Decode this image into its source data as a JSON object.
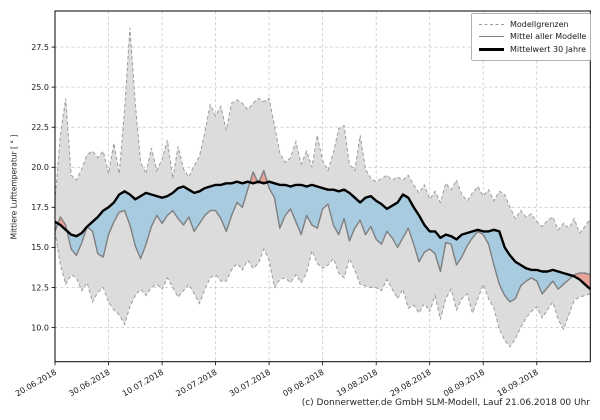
{
  "caption": "(c) Donnerwetter.de GmbH SLM-Modell, Lauf 21.06.2018 00 Uhr",
  "chart_data": {
    "type": "line",
    "title": "",
    "xlabel": "",
    "ylabel": "Mittlere Lufttemperatur [ ° ]",
    "x_unit": "days since 20.06.2018",
    "x_tick_days": [
      0,
      10,
      20,
      30,
      40,
      50,
      60,
      70,
      80,
      90
    ],
    "x_tick_labels": [
      "20.06.2018",
      "30.06.2018",
      "10.07.2018",
      "20.07.2018",
      "30.07.2018",
      "09.08.2018",
      "19.08.2018",
      "29.08.2018",
      "08.09.2018",
      "18.09.2018"
    ],
    "y_ticks": [
      10.0,
      12.5,
      15.0,
      17.5,
      20.0,
      22.5,
      25.0,
      27.5
    ],
    "ylim": [
      7.87,
      29.75
    ],
    "xlim_days": [
      0,
      100
    ],
    "grid": "dashed",
    "legend_position": "upper right",
    "legend": [
      "Modellgrenzen",
      "Mittel aller Modelle",
      "Mittelwert 30 Jahre"
    ],
    "colors": {
      "band_fill": "#dcdcdc",
      "bound_line": "#9c9c9c",
      "model_mean_line": "#7f7f7f",
      "mean30_line": "#000000",
      "warmer_fill": "#e8a49c",
      "cooler_fill": "#a8cbe0",
      "grid": "#c9c9c9"
    },
    "series": [
      {
        "name": "Modellgrenzen (oben)",
        "values": [
          17.9,
          22.0,
          24.3,
          19.5,
          19.2,
          19.9,
          20.8,
          21.0,
          20.6,
          21.0,
          19.6,
          21.5,
          19.6,
          23.6,
          28.7,
          24.0,
          20.3,
          19.6,
          21.2,
          19.8,
          20.5,
          21.7,
          19.3,
          21.3,
          19.9,
          19.4,
          20.1,
          20.7,
          22.2,
          23.9,
          23.2,
          23.8,
          22.3,
          24.0,
          24.2,
          24.0,
          23.6,
          24.0,
          24.3,
          24.1,
          24.3,
          22.6,
          20.9,
          20.3,
          20.6,
          21.6,
          20.2,
          21.0,
          20.0,
          22.0,
          20.4,
          19.8,
          20.9,
          22.4,
          22.6,
          20.2,
          19.8,
          22.0,
          19.9,
          19.3,
          19.1,
          19.3,
          19.5,
          19.2,
          19.4,
          19.2,
          19.5,
          18.9,
          18.4,
          18.9,
          18.0,
          18.5,
          17.8,
          19.0,
          18.6,
          19.2,
          18.3,
          17.9,
          18.4,
          18.8,
          18.2,
          18.6,
          17.9,
          18.5,
          18.3,
          17.5,
          16.8,
          17.3,
          16.9,
          17.1,
          16.6,
          16.3,
          16.7,
          16.9,
          16.1,
          16.5,
          16.2,
          16.8,
          15.9,
          16.3,
          16.8
        ]
      },
      {
        "name": "Modellgrenzen (unten)",
        "values": [
          16.0,
          13.9,
          12.7,
          13.3,
          13.1,
          12.3,
          12.8,
          11.6,
          12.2,
          12.5,
          11.6,
          11.1,
          10.8,
          10.2,
          11.3,
          12.0,
          12.4,
          12.0,
          12.5,
          12.7,
          12.4,
          13.1,
          12.5,
          11.9,
          12.3,
          12.7,
          12.1,
          11.5,
          12.4,
          13.1,
          13.3,
          12.9,
          12.9,
          13.6,
          14.0,
          13.6,
          14.2,
          13.7,
          14.0,
          14.9,
          14.2,
          12.5,
          13.0,
          13.1,
          12.8,
          13.3,
          12.8,
          13.4,
          14.8,
          14.0,
          13.7,
          13.9,
          14.3,
          13.4,
          13.1,
          14.3,
          13.6,
          12.7,
          12.6,
          12.5,
          12.5,
          12.3,
          13.0,
          12.4,
          11.8,
          12.4,
          11.2,
          11.4,
          10.9,
          11.5,
          11.0,
          12.0,
          10.5,
          11.8,
          12.4,
          11.1,
          11.8,
          12.1,
          10.9,
          11.8,
          12.7,
          11.8,
          11.2,
          9.9,
          9.2,
          8.8,
          9.3,
          10.0,
          10.6,
          11.0,
          11.3,
          10.6,
          11.1,
          11.6,
          10.5,
          9.9,
          10.8,
          11.7,
          11.9,
          12.0,
          12.1
        ]
      },
      {
        "name": "Mittel aller Modelle",
        "values": [
          16.0,
          16.9,
          16.4,
          14.9,
          14.5,
          15.3,
          16.3,
          16.0,
          14.6,
          14.4,
          15.8,
          16.6,
          17.2,
          17.3,
          16.4,
          15.1,
          14.3,
          15.2,
          16.3,
          17.0,
          16.5,
          17.0,
          17.3,
          16.8,
          16.4,
          16.9,
          16.0,
          16.5,
          17.0,
          17.3,
          17.3,
          16.8,
          16.0,
          17.0,
          17.8,
          17.5,
          18.6,
          19.7,
          19.0,
          19.8,
          18.7,
          18.1,
          16.2,
          17.0,
          17.4,
          16.6,
          15.8,
          17.0,
          16.4,
          16.2,
          17.4,
          17.7,
          16.4,
          15.8,
          16.8,
          15.4,
          16.2,
          16.7,
          15.8,
          16.3,
          15.5,
          15.2,
          16.0,
          15.6,
          15.0,
          15.6,
          16.2,
          15.2,
          14.1,
          14.7,
          14.9,
          14.6,
          13.5,
          15.3,
          15.2,
          13.9,
          14.4,
          15.1,
          15.6,
          16.0,
          15.8,
          15.2,
          13.9,
          12.7,
          12.0,
          11.6,
          11.8,
          12.6,
          12.9,
          13.1,
          12.9,
          12.1,
          12.5,
          12.9,
          12.4,
          12.7,
          13.0,
          13.3,
          13.4,
          13.4,
          13.3
        ]
      },
      {
        "name": "Mittelwert 30 Jahre",
        "values": [
          16.6,
          16.4,
          16.1,
          15.8,
          15.7,
          15.9,
          16.3,
          16.6,
          16.9,
          17.3,
          17.5,
          17.8,
          18.3,
          18.5,
          18.3,
          18.0,
          18.2,
          18.4,
          18.3,
          18.2,
          18.1,
          18.2,
          18.4,
          18.7,
          18.8,
          18.6,
          18.4,
          18.5,
          18.7,
          18.8,
          18.9,
          18.9,
          19.0,
          19.0,
          19.1,
          19.0,
          19.1,
          19.0,
          19.1,
          19.0,
          19.1,
          19.0,
          18.9,
          18.9,
          18.8,
          18.9,
          18.9,
          18.8,
          18.9,
          18.8,
          18.7,
          18.6,
          18.6,
          18.5,
          18.6,
          18.4,
          18.1,
          17.8,
          18.1,
          18.2,
          17.9,
          17.7,
          17.4,
          17.6,
          17.8,
          18.3,
          18.1,
          17.5,
          17.0,
          16.4,
          16.0,
          16.0,
          15.6,
          15.8,
          15.7,
          15.5,
          15.8,
          15.9,
          16.0,
          16.1,
          16.0,
          16.0,
          16.1,
          16.0,
          15.0,
          14.5,
          14.1,
          13.9,
          13.7,
          13.6,
          13.6,
          13.5,
          13.5,
          13.6,
          13.5,
          13.4,
          13.3,
          13.2,
          13.0,
          12.7,
          12.4
        ]
      }
    ]
  }
}
